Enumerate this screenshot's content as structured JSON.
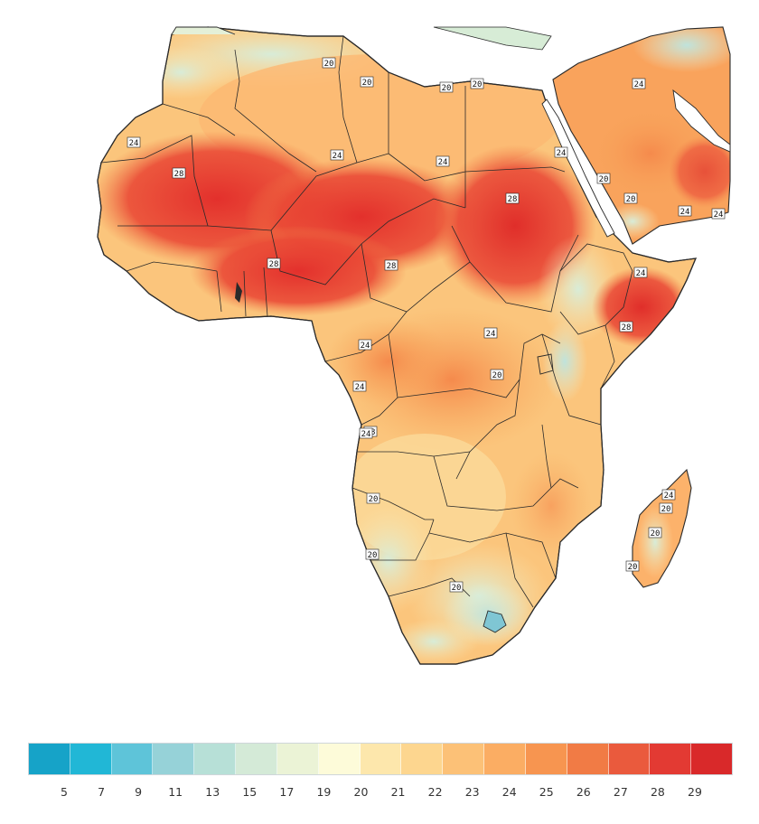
{
  "colors": {
    "scale": [
      "#16a3c8",
      "#21b7d6",
      "#5ec4d9",
      "#96d2d8",
      "#b7e0d7",
      "#d4ead7",
      "#ebf3d6",
      "#fdfbd9",
      "#fde7ac",
      "#fdd68f",
      "#fcc177",
      "#fbad63",
      "#f79550",
      "#f17b45",
      "#ea5a3d",
      "#e33a33",
      "#d9292a"
    ],
    "border": "#2a2a2a"
  },
  "colorbar": {
    "ticks": [
      "5",
      "7",
      "9",
      "11",
      "13",
      "15",
      "17",
      "19",
      "20",
      "21",
      "22",
      "23",
      "24",
      "25",
      "26",
      "27",
      "28",
      "29"
    ]
  },
  "contour_labels": [
    "20",
    "20",
    "20",
    "20",
    "24",
    "24",
    "24",
    "28",
    "28",
    "28",
    "28",
    "20",
    "24",
    "24",
    "20",
    "28",
    "24",
    "24",
    "24",
    "24",
    "20",
    "28",
    "24",
    "24",
    "20",
    "20",
    "20",
    "20",
    "20",
    "24",
    "20",
    "24"
  ]
}
